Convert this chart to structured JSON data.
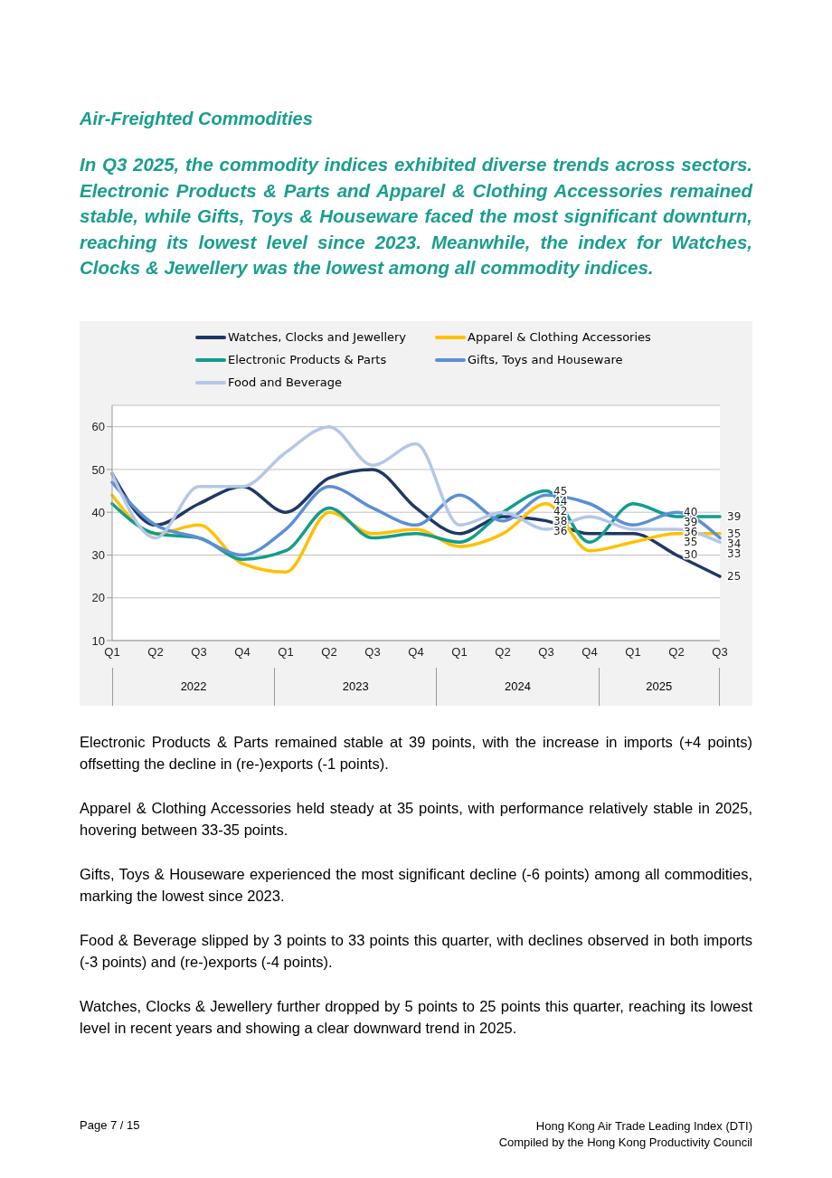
{
  "chart_data": {
    "type": "line",
    "title": "Air-Freighted Commodities",
    "subtitle": "In Q3 2025, the commodity indices exhibited diverse trends across sectors. Electronic Products & Parts and Apparel & Clothing Accessories remained stable, while Gifts, Toys & Houseware faced the most significant downturn, reaching its lowest level since 2023. Meanwhile, the index for Watches, Clocks & Jewellery was the lowest among all commodity indices.",
    "categories": [
      "Q1",
      "Q2",
      "Q3",
      "Q4",
      "Q1",
      "Q2",
      "Q3",
      "Q4",
      "Q1",
      "Q2",
      "Q3",
      "Q4",
      "Q1",
      "Q2",
      "Q3"
    ],
    "series": [
      {
        "name": "Watches, Clocks and Jewellery",
        "color": "#1f3864",
        "values": [
          49,
          37,
          42,
          46,
          40,
          48,
          50,
          41,
          35,
          39,
          38,
          35,
          35,
          30,
          25
        ],
        "value_labels": [
          null,
          null,
          null,
          null,
          null,
          null,
          null,
          null,
          null,
          null,
          "38",
          null,
          null,
          "30",
          "25"
        ]
      },
      {
        "name": "Apparel & Clothing Accessories",
        "color": "#ffc000",
        "values": [
          44,
          35,
          37,
          28,
          26,
          40,
          35,
          36,
          32,
          35,
          42,
          31,
          33,
          35,
          35
        ],
        "value_labels": [
          null,
          null,
          null,
          null,
          null,
          null,
          null,
          null,
          null,
          null,
          "42",
          null,
          null,
          "35",
          "35"
        ]
      },
      {
        "name": "Electronic Products & Parts",
        "color": "#129c8e",
        "values": [
          42,
          35,
          34,
          29,
          31,
          41,
          34,
          35,
          33,
          40,
          45,
          33,
          42,
          39,
          39
        ],
        "value_labels": [
          null,
          null,
          null,
          null,
          null,
          null,
          null,
          null,
          null,
          null,
          "45",
          null,
          null,
          "39",
          "39"
        ]
      },
      {
        "name": "Gifts, Toys and Houseware",
        "color": "#5b8fd6",
        "values": [
          47,
          37,
          34,
          30,
          36,
          46,
          41,
          37,
          44,
          38,
          44,
          42,
          37,
          40,
          34
        ],
        "value_labels": [
          null,
          null,
          null,
          null,
          null,
          null,
          null,
          null,
          null,
          null,
          "44",
          null,
          null,
          "40",
          "34"
        ]
      },
      {
        "name": "Food and Beverage",
        "color": "#b4c7e7",
        "values": [
          49,
          34,
          46,
          46,
          54,
          60,
          51,
          56,
          37,
          40,
          36,
          39,
          36,
          36,
          33
        ],
        "value_labels": [
          null,
          null,
          null,
          null,
          null,
          null,
          null,
          null,
          null,
          null,
          "36",
          null,
          null,
          "36",
          "33"
        ]
      }
    ],
    "ylim": [
      10,
      65
    ],
    "yticks": [
      10,
      20,
      30,
      40,
      50,
      60
    ],
    "grid": "y",
    "legend": "top",
    "marker": "none",
    "line_style": "solid",
    "annotations": [
      "2022",
      "2023",
      "2024",
      "2025",
      "Electronic Products & Parts remained stable at 39 points, with the increase in imports (+4 points) offsetting the decline in (re-)exports (-1 points).",
      "Apparel & Clothing Accessories held steady at 35 points, with performance relatively stable in 2025, hovering between 33-35 points.",
      "Gifts, Toys & Houseware experienced the most significant decline (-6 points) among all commodities, marking the lowest since 2023.",
      "Food & Beverage slipped by 3 points to 33 points this quarter, with declines observed in both imports (-3 points) and (re-)exports (-4 points).",
      "Watches, Clocks & Jewellery further dropped by 5 points to 25 points this quarter, reaching its lowest level in recent years and showing a clear downward trend in 2025.",
      "Page 7 / 15",
      "Hong Kong Air Trade Leading Index (DTI)",
      "Compiled by the Hong Kong Productivity Council"
    ]
  }
}
